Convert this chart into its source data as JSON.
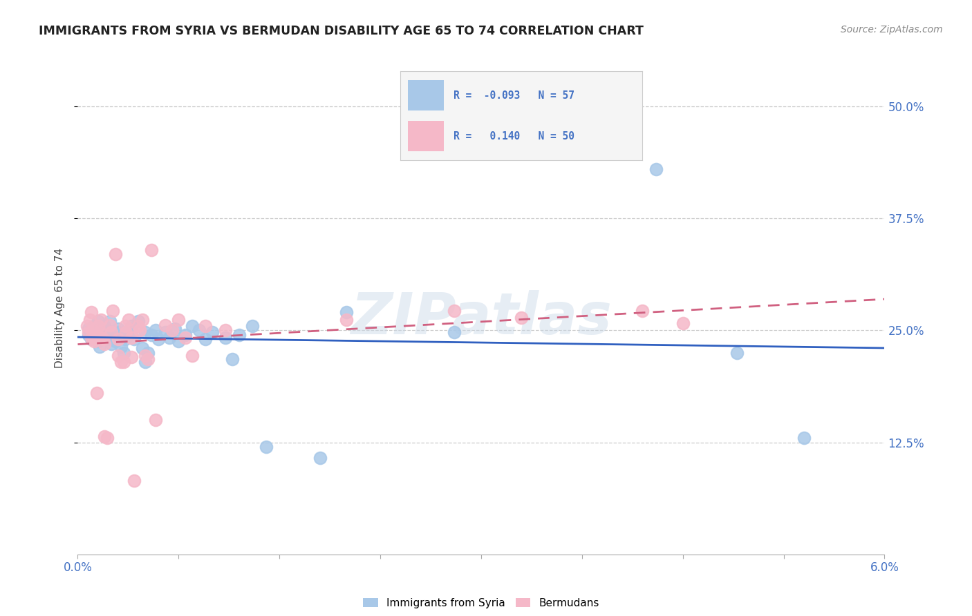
{
  "title": "IMMIGRANTS FROM SYRIA VS BERMUDAN DISABILITY AGE 65 TO 74 CORRELATION CHART",
  "source": "Source: ZipAtlas.com",
  "ylabel": "Disability Age 65 to 74",
  "ytick_labels": [
    "12.5%",
    "25.0%",
    "37.5%",
    "50.0%"
  ],
  "ytick_values": [
    0.125,
    0.25,
    0.375,
    0.5
  ],
  "xlim": [
    0.0,
    0.06
  ],
  "ylim": [
    0.0,
    0.55
  ],
  "legend_label1": "Immigrants from Syria",
  "legend_label2": "Bermudans",
  "R1": -0.093,
  "N1": 57,
  "R2": 0.14,
  "N2": 50,
  "color_blue": "#a8c8e8",
  "color_pink": "#f5b8c8",
  "line_color_blue": "#3060c0",
  "line_color_pink": "#d06080",
  "text_color_blue": "#4472c4",
  "background_color": "#ffffff",
  "blue_scatter": [
    [
      0.0008,
      0.245
    ],
    [
      0.0008,
      0.252
    ],
    [
      0.001,
      0.248
    ],
    [
      0.001,
      0.24
    ],
    [
      0.0012,
      0.255
    ],
    [
      0.0012,
      0.242
    ],
    [
      0.0014,
      0.25
    ],
    [
      0.0015,
      0.238
    ],
    [
      0.0015,
      0.26
    ],
    [
      0.0016,
      0.232
    ],
    [
      0.0018,
      0.248
    ],
    [
      0.002,
      0.245
    ],
    [
      0.002,
      0.255
    ],
    [
      0.0022,
      0.25
    ],
    [
      0.0022,
      0.24
    ],
    [
      0.0024,
      0.26
    ],
    [
      0.0025,
      0.248
    ],
    [
      0.0025,
      0.235
    ],
    [
      0.0028,
      0.242
    ],
    [
      0.0028,
      0.238
    ],
    [
      0.003,
      0.252
    ],
    [
      0.003,
      0.248
    ],
    [
      0.0032,
      0.232
    ],
    [
      0.0034,
      0.225
    ],
    [
      0.0035,
      0.24
    ],
    [
      0.0038,
      0.245
    ],
    [
      0.004,
      0.255
    ],
    [
      0.004,
      0.25
    ],
    [
      0.0042,
      0.24
    ],
    [
      0.0045,
      0.26
    ],
    [
      0.0048,
      0.23
    ],
    [
      0.005,
      0.248
    ],
    [
      0.005,
      0.215
    ],
    [
      0.0052,
      0.225
    ],
    [
      0.0055,
      0.245
    ],
    [
      0.0058,
      0.25
    ],
    [
      0.006,
      0.24
    ],
    [
      0.0065,
      0.248
    ],
    [
      0.0068,
      0.242
    ],
    [
      0.0072,
      0.252
    ],
    [
      0.0075,
      0.238
    ],
    [
      0.008,
      0.245
    ],
    [
      0.0085,
      0.255
    ],
    [
      0.009,
      0.25
    ],
    [
      0.0095,
      0.24
    ],
    [
      0.01,
      0.248
    ],
    [
      0.011,
      0.242
    ],
    [
      0.0115,
      0.218
    ],
    [
      0.012,
      0.245
    ],
    [
      0.013,
      0.255
    ],
    [
      0.014,
      0.12
    ],
    [
      0.018,
      0.108
    ],
    [
      0.02,
      0.27
    ],
    [
      0.028,
      0.248
    ],
    [
      0.043,
      0.43
    ],
    [
      0.049,
      0.225
    ],
    [
      0.054,
      0.13
    ]
  ],
  "pink_scatter": [
    [
      0.0007,
      0.255
    ],
    [
      0.0008,
      0.248
    ],
    [
      0.0009,
      0.262
    ],
    [
      0.001,
      0.242
    ],
    [
      0.001,
      0.27
    ],
    [
      0.0011,
      0.25
    ],
    [
      0.0012,
      0.24
    ],
    [
      0.0012,
      0.238
    ],
    [
      0.0014,
      0.18
    ],
    [
      0.0015,
      0.255
    ],
    [
      0.0016,
      0.248
    ],
    [
      0.0017,
      0.262
    ],
    [
      0.0018,
      0.242
    ],
    [
      0.0019,
      0.24
    ],
    [
      0.002,
      0.235
    ],
    [
      0.002,
      0.132
    ],
    [
      0.0022,
      0.13
    ],
    [
      0.0024,
      0.256
    ],
    [
      0.0025,
      0.248
    ],
    [
      0.0026,
      0.272
    ],
    [
      0.0028,
      0.335
    ],
    [
      0.003,
      0.24
    ],
    [
      0.003,
      0.222
    ],
    [
      0.0032,
      0.215
    ],
    [
      0.0034,
      0.215
    ],
    [
      0.0035,
      0.255
    ],
    [
      0.0036,
      0.248
    ],
    [
      0.0038,
      0.262
    ],
    [
      0.004,
      0.242
    ],
    [
      0.004,
      0.22
    ],
    [
      0.0042,
      0.082
    ],
    [
      0.0045,
      0.255
    ],
    [
      0.0046,
      0.25
    ],
    [
      0.0048,
      0.262
    ],
    [
      0.005,
      0.222
    ],
    [
      0.0052,
      0.218
    ],
    [
      0.0055,
      0.34
    ],
    [
      0.0058,
      0.15
    ],
    [
      0.0065,
      0.256
    ],
    [
      0.007,
      0.25
    ],
    [
      0.0075,
      0.262
    ],
    [
      0.008,
      0.242
    ],
    [
      0.0085,
      0.222
    ],
    [
      0.0095,
      0.255
    ],
    [
      0.011,
      0.25
    ],
    [
      0.02,
      0.262
    ],
    [
      0.028,
      0.272
    ],
    [
      0.033,
      0.264
    ],
    [
      0.042,
      0.272
    ],
    [
      0.045,
      0.258
    ]
  ]
}
